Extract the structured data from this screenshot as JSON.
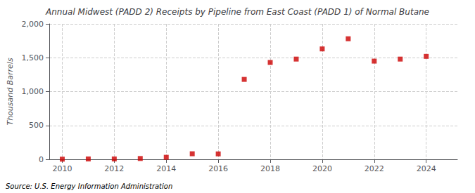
{
  "chart_data": {
    "type": "scatter",
    "title": "Annual Midwest (PADD 2) Receipts by Pipeline from East Coast (PADD 1) of Normal Butane",
    "ylabel": "Thousand Barrels",
    "source": "Source: U.S. Energy Information Administration",
    "x": [
      2010,
      2011,
      2012,
      2013,
      2014,
      2015,
      2016,
      2017,
      2018,
      2019,
      2020,
      2021,
      2022,
      2023,
      2024
    ],
    "values": [
      2,
      5,
      5,
      12,
      30,
      82,
      80,
      1180,
      1430,
      1480,
      1630,
      1780,
      1450,
      1480,
      1520
    ],
    "color": "#CC0000",
    "marker": "square",
    "xlim": [
      2009.5,
      2025.2
    ],
    "xticks": [
      2010,
      2012,
      2014,
      2016,
      2018,
      2020,
      2022,
      2024
    ],
    "ylim": [
      0,
      2000
    ],
    "yticks": [
      0,
      500,
      {
        "value": 1000,
        "label": "1,000"
      },
      {
        "value": 1500,
        "label": "1,500"
      },
      {
        "value": 2000,
        "label": "2,000"
      }
    ],
    "grid": true
  }
}
